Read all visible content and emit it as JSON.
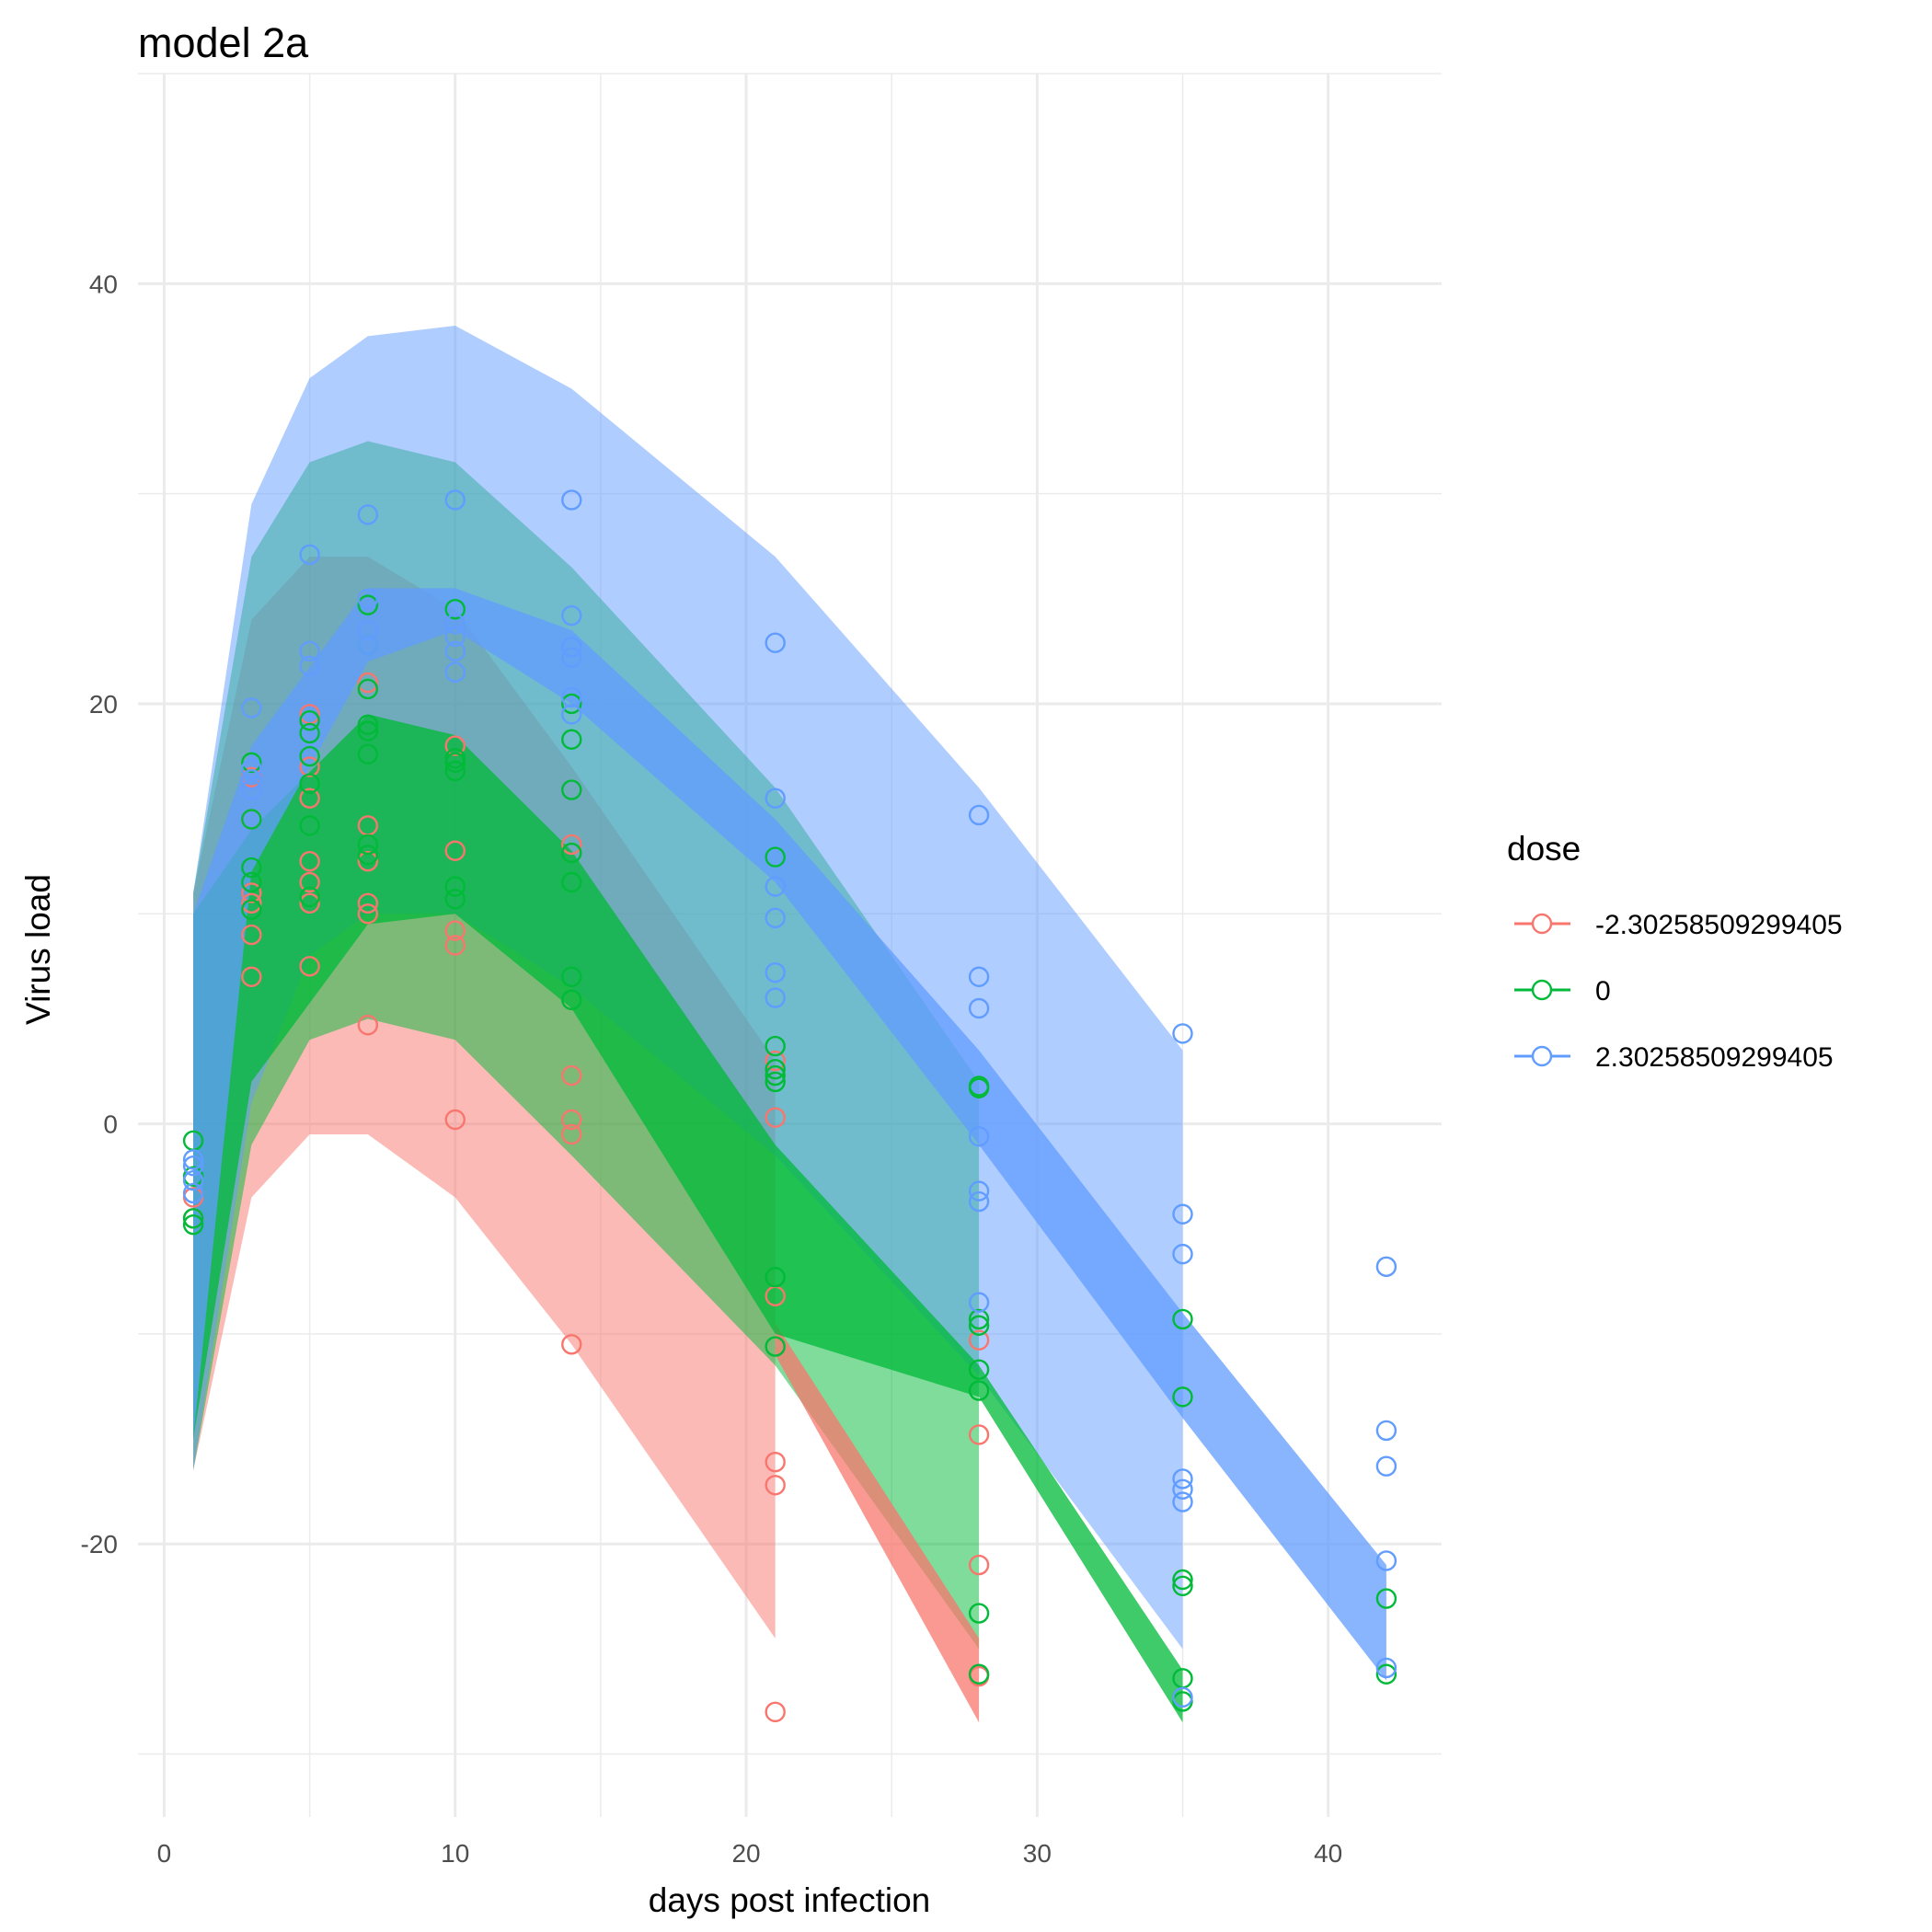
{
  "chart_data": {
    "type": "line",
    "title": "model 2a",
    "xlabel": "days post infection",
    "ylabel": "Virus load",
    "xlim": [
      -0.9,
      43.9
    ],
    "ylim": [
      -33,
      50
    ],
    "x_ticks": [
      0,
      10,
      20,
      30,
      40
    ],
    "y_ticks": [
      -20,
      0,
      20,
      40
    ],
    "grid": true,
    "legend": {
      "title": "dose",
      "position": "right"
    },
    "series": [
      {
        "name": "-2.30258509299405",
        "color": "#F8766D",
        "ribbon_outer": [
          {
            "x": 1,
            "lo": -16.5,
            "hi": 11
          },
          {
            "x": 3,
            "lo": -3.5,
            "hi": 24
          },
          {
            "x": 5,
            "lo": -0.5,
            "hi": 27
          },
          {
            "x": 7,
            "lo": -0.5,
            "hi": 27
          },
          {
            "x": 10,
            "lo": -3.5,
            "hi": 24.5
          },
          {
            "x": 14,
            "lo": -10.5,
            "hi": 17
          },
          {
            "x": 21,
            "lo": -24.5,
            "hi": 3
          }
        ],
        "ribbon_inner": [
          {
            "x": 21,
            "lo": -11,
            "hi": -9.5
          },
          {
            "x": 28,
            "lo": -28.5,
            "hi": -24.5
          }
        ],
        "points": [
          {
            "x": 1,
            "y": -3.5
          },
          {
            "x": 1,
            "y": -4.5
          },
          {
            "x": 3,
            "y": 7
          },
          {
            "x": 3,
            "y": 9
          },
          {
            "x": 3,
            "y": 10.5
          },
          {
            "x": 3,
            "y": 11
          },
          {
            "x": 3,
            "y": 14.5
          },
          {
            "x": 3,
            "y": 16.5
          },
          {
            "x": 5,
            "y": 7.5
          },
          {
            "x": 5,
            "y": 10.5
          },
          {
            "x": 5,
            "y": 11.5
          },
          {
            "x": 5,
            "y": 12.5
          },
          {
            "x": 5,
            "y": 15.5
          },
          {
            "x": 5,
            "y": 17
          },
          {
            "x": 5,
            "y": 19.5
          },
          {
            "x": 7,
            "y": 4.7
          },
          {
            "x": 7,
            "y": 10
          },
          {
            "x": 7,
            "y": 10.5
          },
          {
            "x": 7,
            "y": 12.5
          },
          {
            "x": 7,
            "y": 14.2
          },
          {
            "x": 7,
            "y": 21
          },
          {
            "x": 10,
            "y": 0.2
          },
          {
            "x": 10,
            "y": 8.5
          },
          {
            "x": 10,
            "y": 9.2
          },
          {
            "x": 10,
            "y": 13
          },
          {
            "x": 10,
            "y": 18
          },
          {
            "x": 14,
            "y": -10.5
          },
          {
            "x": 14,
            "y": -0.5
          },
          {
            "x": 14,
            "y": 0.2
          },
          {
            "x": 14,
            "y": 2.3
          },
          {
            "x": 14,
            "y": 13.3
          },
          {
            "x": 21,
            "y": -28
          },
          {
            "x": 21,
            "y": -17.2
          },
          {
            "x": 21,
            "y": -16.1
          },
          {
            "x": 21,
            "y": -8.2
          },
          {
            "x": 21,
            "y": 0.3
          },
          {
            "x": 21,
            "y": 3
          },
          {
            "x": 28,
            "y": -26.3
          },
          {
            "x": 28,
            "y": -21
          },
          {
            "x": 28,
            "y": -14.8
          },
          {
            "x": 28,
            "y": -10.3
          }
        ]
      },
      {
        "name": "0",
        "color": "#00BA38",
        "ribbon_outer": [
          {
            "x": 1,
            "lo": -16.5,
            "hi": 11
          },
          {
            "x": 3,
            "lo": -1,
            "hi": 27
          },
          {
            "x": 5,
            "lo": 4,
            "hi": 31.5
          },
          {
            "x": 7,
            "lo": 5,
            "hi": 32.5
          },
          {
            "x": 10,
            "lo": 4,
            "hi": 31.5
          },
          {
            "x": 14,
            "lo": -1.5,
            "hi": 26.5
          },
          {
            "x": 21,
            "lo": -11.5,
            "hi": 16
          },
          {
            "x": 28,
            "lo": -25,
            "hi": 2
          }
        ],
        "ribbon_inner": [
          {
            "x": 1,
            "lo": -15,
            "hi": 10
          },
          {
            "x": 3,
            "lo": 2,
            "hi": 14
          },
          {
            "x": 7,
            "lo": 9.5,
            "hi": 19.5
          },
          {
            "x": 10,
            "lo": 10,
            "hi": 18.5
          },
          {
            "x": 14,
            "lo": 5.5,
            "hi": 13
          },
          {
            "x": 21,
            "lo": -10,
            "hi": -1
          },
          {
            "x": 28,
            "lo": -13,
            "hi": -11.5
          },
          {
            "x": 35,
            "lo": -28.5,
            "hi": -26
          }
        ],
        "points": [
          {
            "x": 1,
            "y": -0.8
          },
          {
            "x": 1,
            "y": -2.5
          },
          {
            "x": 1,
            "y": -4.5
          },
          {
            "x": 1,
            "y": -4.8
          },
          {
            "x": 3,
            "y": 10.2
          },
          {
            "x": 3,
            "y": 11.5
          },
          {
            "x": 3,
            "y": 12.2
          },
          {
            "x": 3,
            "y": 14.5
          },
          {
            "x": 3,
            "y": 17.2
          },
          {
            "x": 5,
            "y": 10.8
          },
          {
            "x": 5,
            "y": 14.2
          },
          {
            "x": 5,
            "y": 16.2
          },
          {
            "x": 5,
            "y": 17.5
          },
          {
            "x": 5,
            "y": 18.6
          },
          {
            "x": 5,
            "y": 19.2
          },
          {
            "x": 7,
            "y": 12.8
          },
          {
            "x": 7,
            "y": 13.3
          },
          {
            "x": 7,
            "y": 17.6
          },
          {
            "x": 7,
            "y": 18.7
          },
          {
            "x": 7,
            "y": 19
          },
          {
            "x": 7,
            "y": 20.7
          },
          {
            "x": 7,
            "y": 22.8
          },
          {
            "x": 7,
            "y": 24.7
          },
          {
            "x": 10,
            "y": 10.7
          },
          {
            "x": 10,
            "y": 11.3
          },
          {
            "x": 10,
            "y": 16.8
          },
          {
            "x": 10,
            "y": 17.2
          },
          {
            "x": 10,
            "y": 17.4
          },
          {
            "x": 10,
            "y": 24.5
          },
          {
            "x": 14,
            "y": 5.9
          },
          {
            "x": 14,
            "y": 7
          },
          {
            "x": 14,
            "y": 11.5
          },
          {
            "x": 14,
            "y": 12.9
          },
          {
            "x": 14,
            "y": 15.9
          },
          {
            "x": 14,
            "y": 18.3
          },
          {
            "x": 14,
            "y": 20
          },
          {
            "x": 21,
            "y": -10.6
          },
          {
            "x": 21,
            "y": -7.3
          },
          {
            "x": 21,
            "y": 2
          },
          {
            "x": 21,
            "y": 2.3
          },
          {
            "x": 21,
            "y": 2.6
          },
          {
            "x": 21,
            "y": 3.7
          },
          {
            "x": 21,
            "y": 12.7
          },
          {
            "x": 28,
            "y": -26.2
          },
          {
            "x": 28,
            "y": -23.3
          },
          {
            "x": 28,
            "y": -12.7
          },
          {
            "x": 28,
            "y": -11.7
          },
          {
            "x": 28,
            "y": -9.6
          },
          {
            "x": 28,
            "y": -9.3
          },
          {
            "x": 28,
            "y": 1.7
          },
          {
            "x": 28,
            "y": 1.8
          },
          {
            "x": 35,
            "y": -27.5
          },
          {
            "x": 35,
            "y": -26.4
          },
          {
            "x": 35,
            "y": -22
          },
          {
            "x": 35,
            "y": -21.7
          },
          {
            "x": 35,
            "y": -13
          },
          {
            "x": 35,
            "y": -9.3
          },
          {
            "x": 42,
            "y": -26.2
          },
          {
            "x": 42,
            "y": -22.6
          }
        ]
      },
      {
        "name": "2.30258509299405",
        "color": "#619CFF",
        "ribbon_outer": [
          {
            "x": 1,
            "lo": -16.5,
            "hi": 11
          },
          {
            "x": 3,
            "lo": 1,
            "hi": 29.5
          },
          {
            "x": 5,
            "lo": 8,
            "hi": 35.5
          },
          {
            "x": 7,
            "lo": 10,
            "hi": 37.5
          },
          {
            "x": 10,
            "lo": 10,
            "hi": 38
          },
          {
            "x": 14,
            "lo": 6.5,
            "hi": 35
          },
          {
            "x": 21,
            "lo": -1.5,
            "hi": 27
          },
          {
            "x": 28,
            "lo": -12,
            "hi": 16
          },
          {
            "x": 35,
            "lo": -25,
            "hi": 3.5
          }
        ],
        "ribbon_inner": [
          {
            "x": 1,
            "lo": -15,
            "hi": 10
          },
          {
            "x": 3,
            "lo": 12,
            "hi": 18
          },
          {
            "x": 7,
            "lo": 22,
            "hi": 25.5
          },
          {
            "x": 10,
            "lo": 23.5,
            "hi": 25.5
          },
          {
            "x": 14,
            "lo": 20,
            "hi": 23.5
          },
          {
            "x": 21,
            "lo": 11.5,
            "hi": 14.5
          },
          {
            "x": 28,
            "lo": -1,
            "hi": 3.5
          },
          {
            "x": 35,
            "lo": -14,
            "hi": -9
          },
          {
            "x": 42,
            "lo": -26.5,
            "hi": -21
          }
        ],
        "points": [
          {
            "x": 1,
            "y": -1.7
          },
          {
            "x": 1,
            "y": -2
          },
          {
            "x": 1,
            "y": -2.7
          },
          {
            "x": 1,
            "y": -3.3
          },
          {
            "x": 3,
            "y": 15.9
          },
          {
            "x": 3,
            "y": 16.4
          },
          {
            "x": 3,
            "y": 16.9
          },
          {
            "x": 3,
            "y": 19.8
          },
          {
            "x": 5,
            "y": 21.8
          },
          {
            "x": 5,
            "y": 22.5
          },
          {
            "x": 5,
            "y": 27.1
          },
          {
            "x": 7,
            "y": 22.8
          },
          {
            "x": 7,
            "y": 23.5
          },
          {
            "x": 7,
            "y": 25
          },
          {
            "x": 7,
            "y": 29
          },
          {
            "x": 10,
            "y": 21.5
          },
          {
            "x": 10,
            "y": 22.5
          },
          {
            "x": 10,
            "y": 23.2
          },
          {
            "x": 10,
            "y": 23.8
          },
          {
            "x": 10,
            "y": 29.7
          },
          {
            "x": 14,
            "y": 19.5
          },
          {
            "x": 14,
            "y": 20.3
          },
          {
            "x": 14,
            "y": 22.2
          },
          {
            "x": 14,
            "y": 22.7
          },
          {
            "x": 14,
            "y": 24.2
          },
          {
            "x": 14,
            "y": 29.7
          },
          {
            "x": 21,
            "y": 6
          },
          {
            "x": 21,
            "y": 7.2
          },
          {
            "x": 21,
            "y": 9.8
          },
          {
            "x": 21,
            "y": 11.3
          },
          {
            "x": 21,
            "y": 15.5
          },
          {
            "x": 21,
            "y": 22.9
          },
          {
            "x": 28,
            "y": -8.5
          },
          {
            "x": 28,
            "y": -3.7
          },
          {
            "x": 28,
            "y": -3.2
          },
          {
            "x": 28,
            "y": -0.6
          },
          {
            "x": 28,
            "y": 5.5
          },
          {
            "x": 28,
            "y": 7
          },
          {
            "x": 28,
            "y": 14.7
          },
          {
            "x": 35,
            "y": -27.3
          },
          {
            "x": 35,
            "y": -18
          },
          {
            "x": 35,
            "y": -17.4
          },
          {
            "x": 35,
            "y": -16.9
          },
          {
            "x": 35,
            "y": -6.2
          },
          {
            "x": 35,
            "y": -4.3
          },
          {
            "x": 35,
            "y": 4.3
          },
          {
            "x": 42,
            "y": -25.9
          },
          {
            "x": 42,
            "y": -20.8
          },
          {
            "x": 42,
            "y": -16.3
          },
          {
            "x": 42,
            "y": -14.6
          },
          {
            "x": 42,
            "y": -6.8
          }
        ]
      }
    ]
  }
}
